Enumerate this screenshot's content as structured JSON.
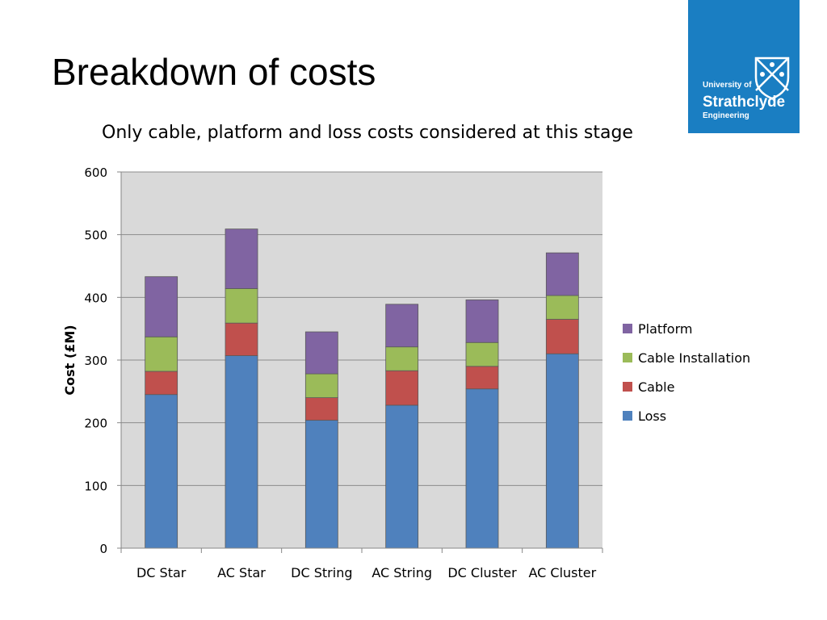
{
  "slide": {
    "title": "Breakdown of costs",
    "subtitle": "Only cable, platform and loss costs considered at this stage"
  },
  "logo": {
    "line1": "University of",
    "line2": "Strathclyde",
    "line3": "Engineering",
    "background": "#1a7ec2",
    "icon": "crest-shield-icon"
  },
  "chart_data": {
    "type": "bar",
    "stacked": true,
    "categories": [
      "DC Star",
      "AC Star",
      "DC String",
      "AC String",
      "DC Cluster",
      "AC Cluster"
    ],
    "series": [
      {
        "name": "Loss",
        "color": "#4f81bd",
        "values": [
          245,
          307,
          204,
          228,
          254,
          310
        ]
      },
      {
        "name": "Cable",
        "color": "#c0504d",
        "values": [
          37,
          52,
          36,
          55,
          36,
          55
        ]
      },
      {
        "name": "Cable Installation",
        "color": "#9bbb59",
        "values": [
          55,
          55,
          38,
          38,
          38,
          38
        ]
      },
      {
        "name": "Platform",
        "color": "#8064a2",
        "values": [
          96,
          95,
          67,
          68,
          68,
          68
        ]
      }
    ],
    "ylabel": "Cost (£M)",
    "xlabel": "",
    "ylim": [
      0,
      600
    ],
    "yticks": [
      0,
      100,
      200,
      300,
      400,
      500,
      600
    ],
    "grid": true,
    "legend": "right"
  }
}
